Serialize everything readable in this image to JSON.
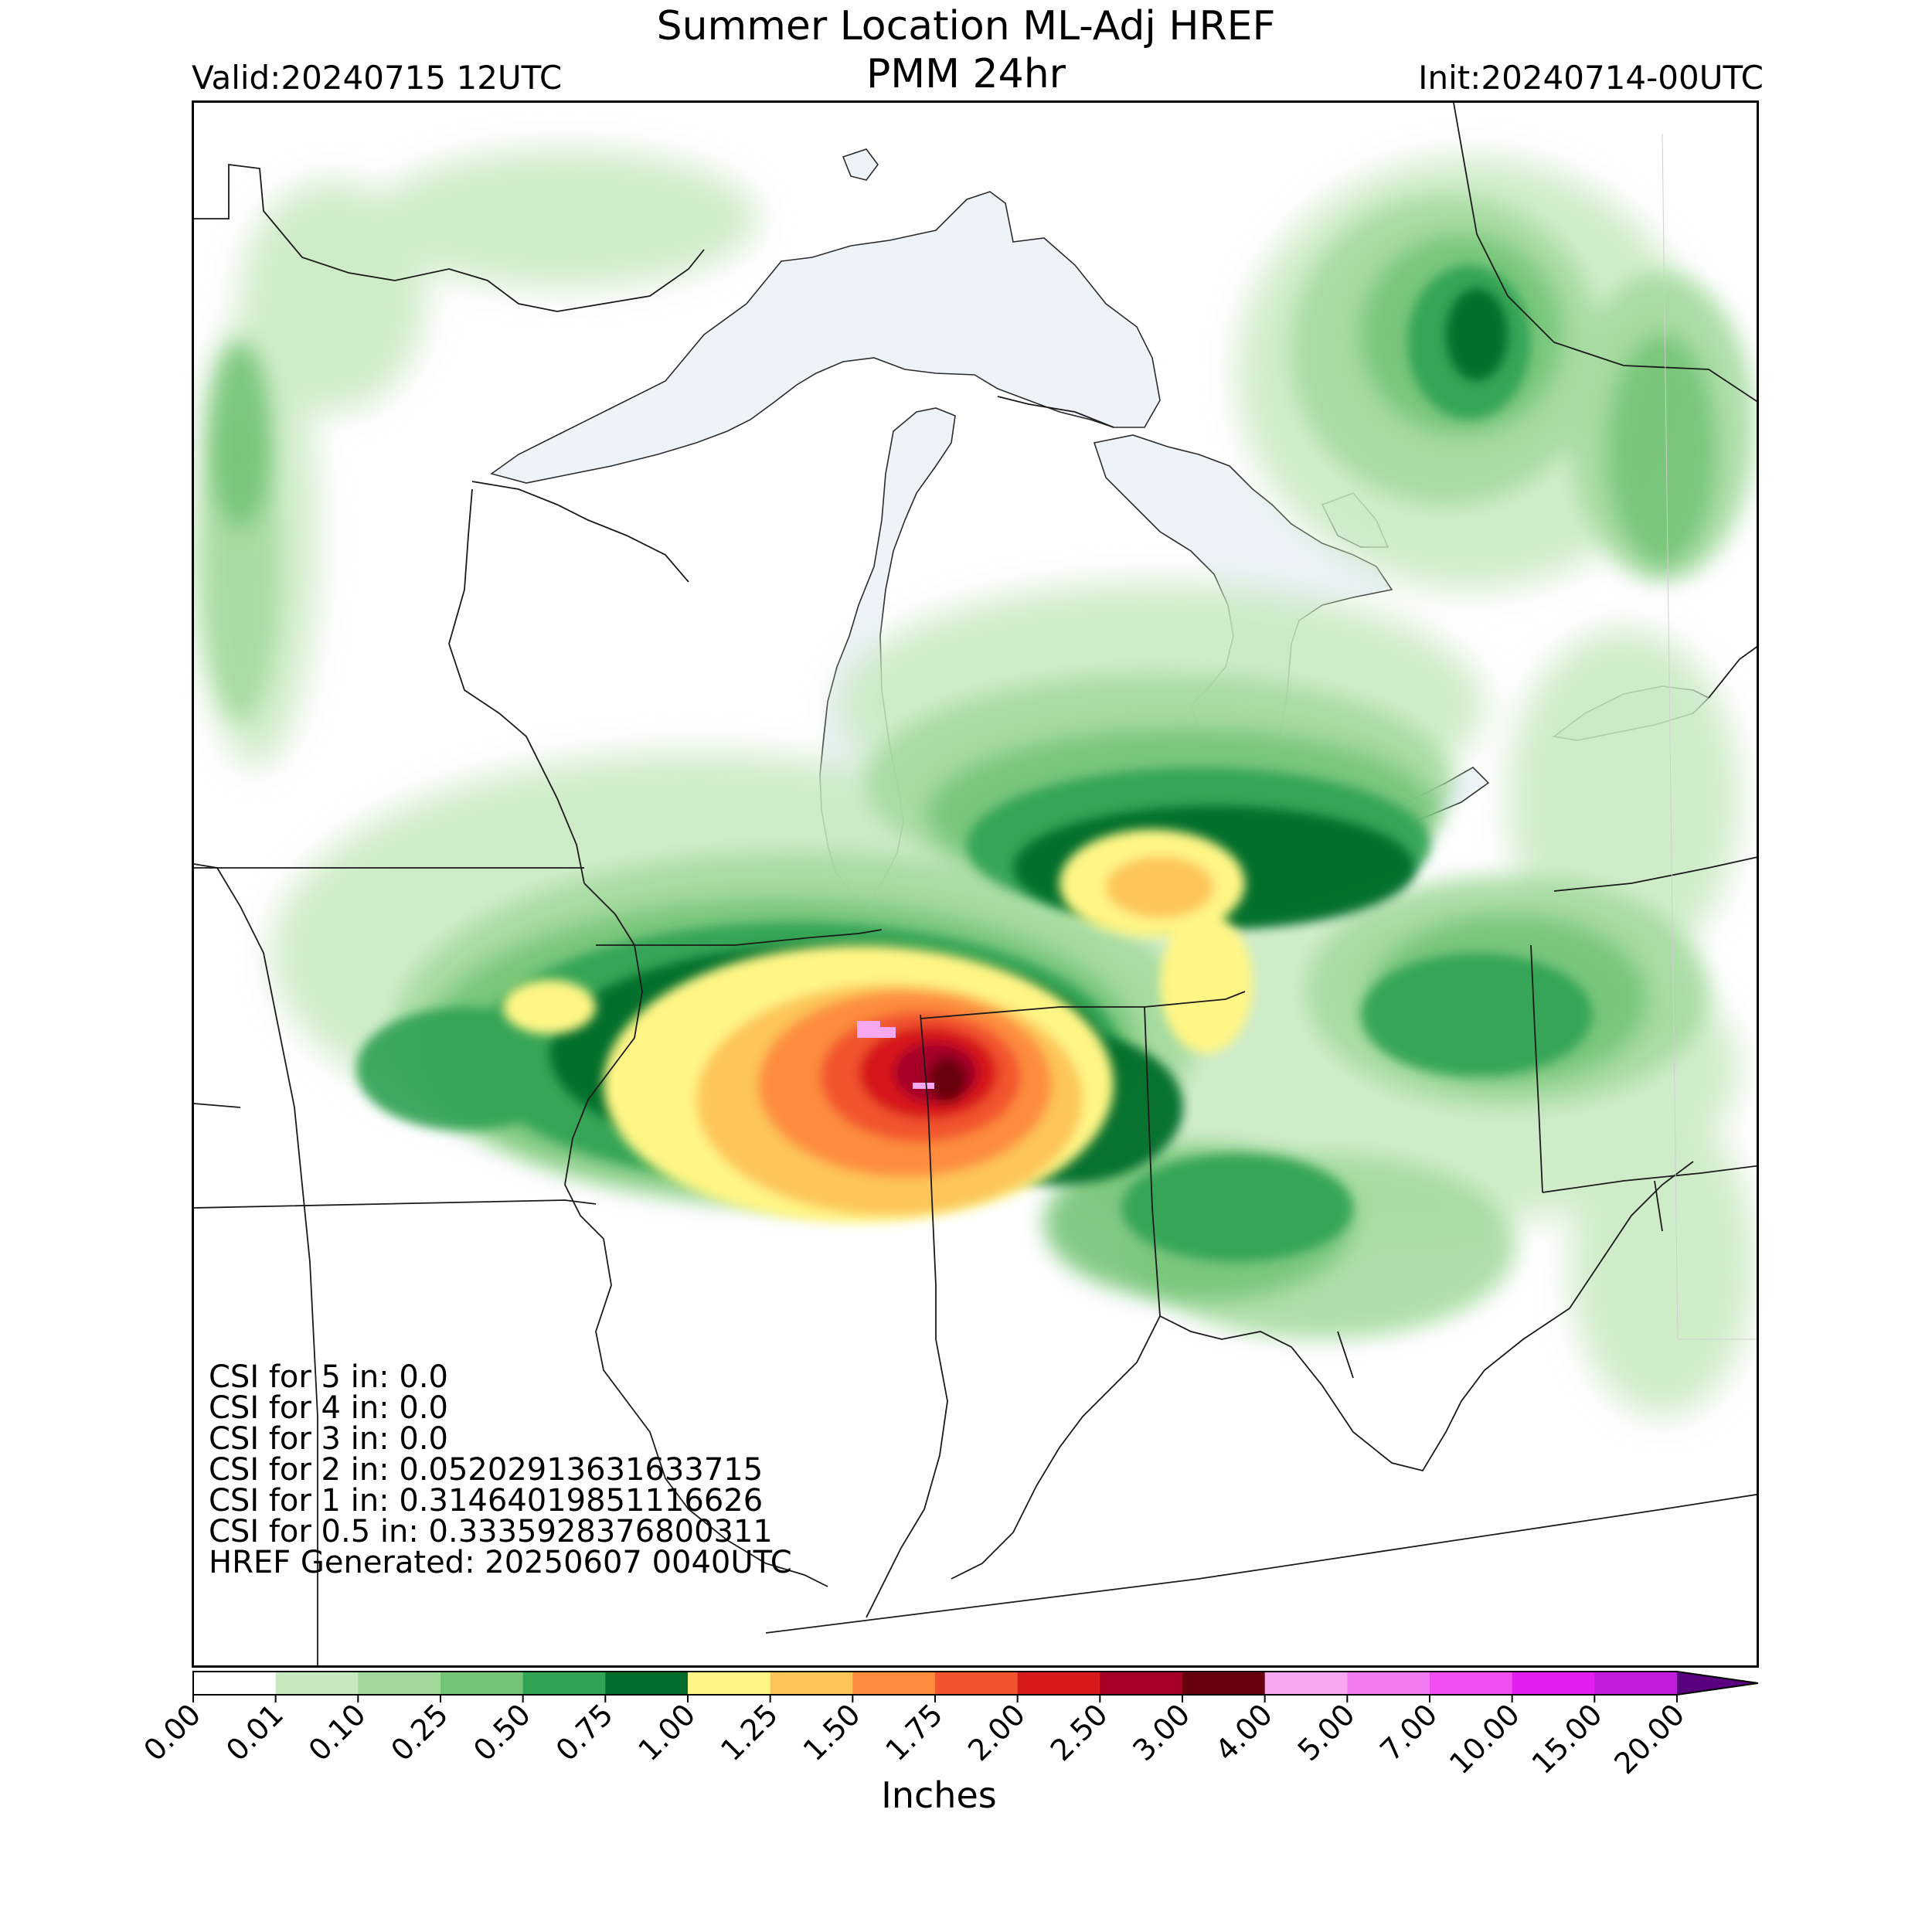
{
  "title": {
    "line1": "Summer Location ML-Adj HREF",
    "line2": "PMM 24hr"
  },
  "valid": "Valid:20240715 12UTC",
  "init": "Init:20240714-00UTC",
  "stats": [
    "CSI for 5 in: 0.0",
    "CSI for 4 in: 0.0",
    "CSI for 3 in: 0.0",
    "CSI for 2 in: 0.05202913631633715",
    "CSI for 1 in: 0.31464019851116626",
    "CSI for 0.5 in: 0.3335928376800311",
    "HREF Generated: 20250607 0040UTC"
  ],
  "colorbar": {
    "label": "Inches",
    "ticks": [
      "0.00",
      "0.01",
      "0.10",
      "0.25",
      "0.50",
      "0.75",
      "1.00",
      "1.25",
      "1.50",
      "1.75",
      "2.00",
      "2.50",
      "3.00",
      "4.00",
      "5.00",
      "7.00",
      "10.00",
      "15.00",
      "20.00"
    ],
    "colors": [
      "#ffffff",
      "#c7e9c0",
      "#a1d99b",
      "#74c476",
      "#31a354",
      "#006d2c",
      "#fff685",
      "#fdc55a",
      "#fd8d3c",
      "#f2542f",
      "#d7191c",
      "#a50026",
      "#67000d",
      "#f7a8f0",
      "#f37bf2",
      "#f24df3",
      "#e21df0",
      "#c31bdc",
      "#8a00c0"
    ],
    "extend_color": "#5a007f"
  },
  "colors": {
    "lake_fill": "#eef3fa",
    "border": "#000000"
  }
}
